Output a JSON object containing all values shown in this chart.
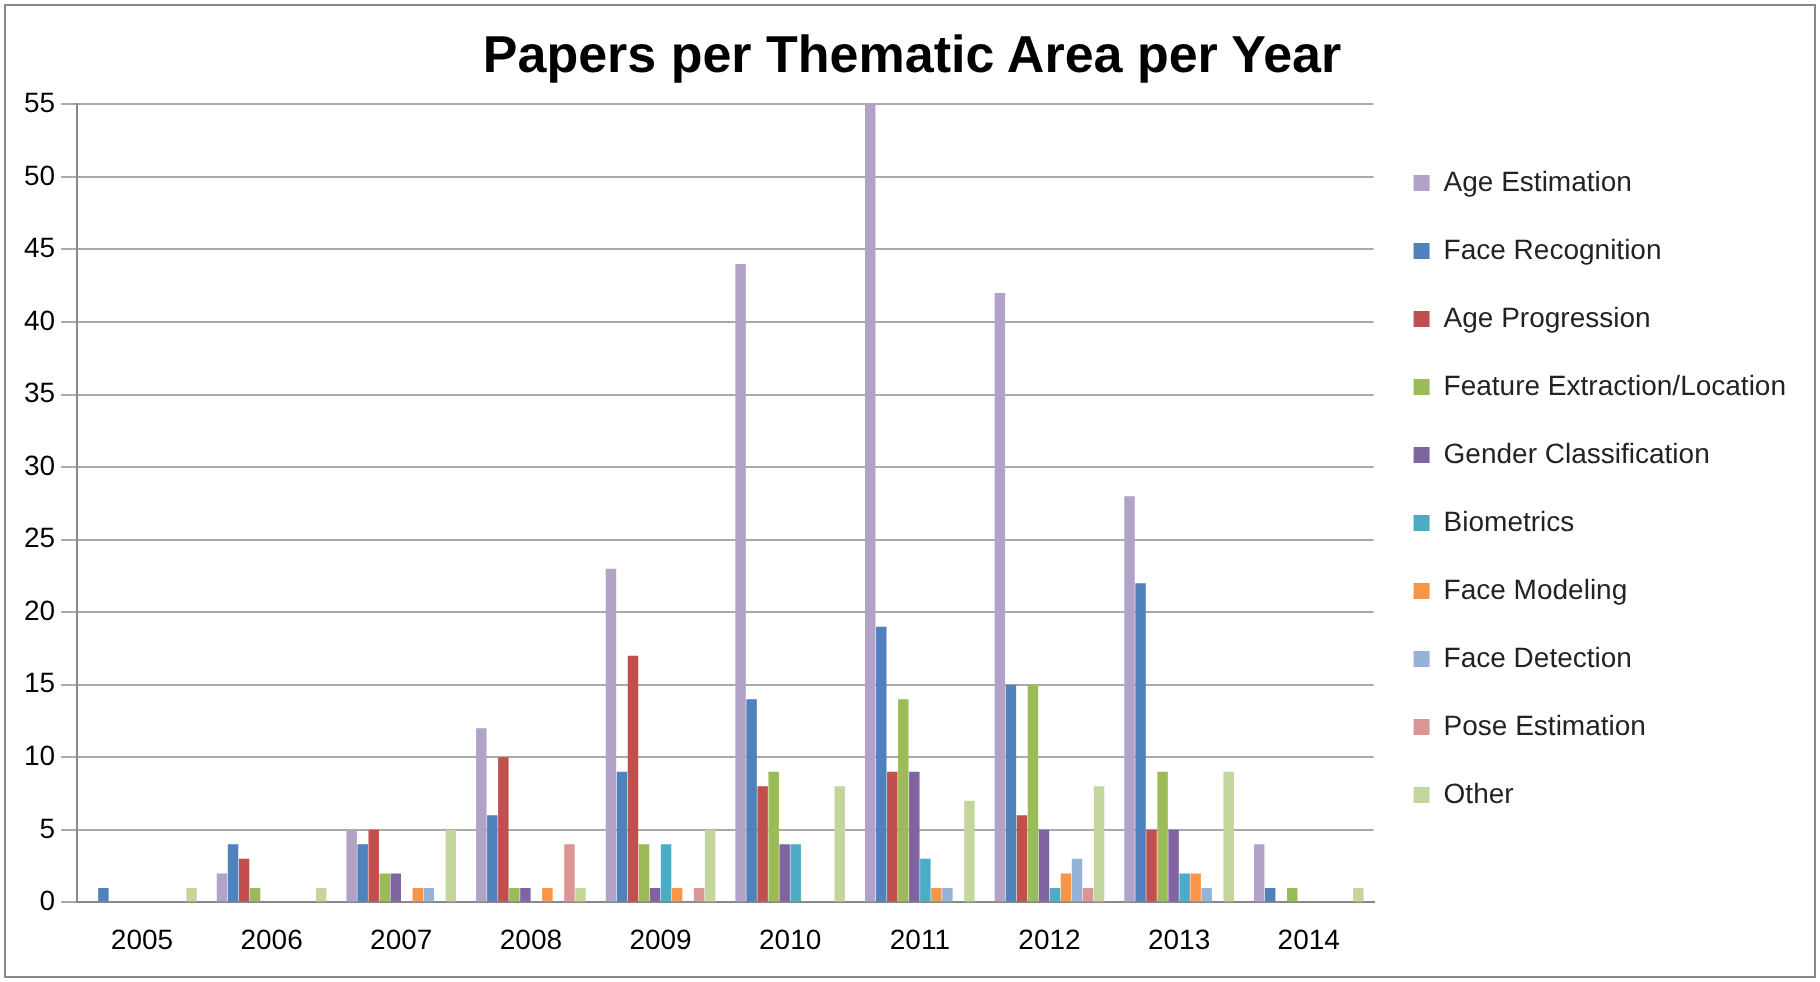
{
  "chart_data": {
    "type": "bar",
    "title": "Papers per Thematic Area per Year",
    "categories": [
      "2005",
      "2006",
      "2007",
      "2008",
      "2009",
      "2010",
      "2011",
      "2012",
      "2013",
      "2014"
    ],
    "series": [
      {
        "name": "Age Estimation",
        "color": "#b3a2c7",
        "values": [
          0,
          2,
          5,
          12,
          23,
          44,
          55,
          42,
          28,
          4
        ]
      },
      {
        "name": "Face Recognition",
        "color": "#4f81bd",
        "values": [
          1,
          4,
          4,
          6,
          9,
          14,
          19,
          15,
          22,
          1
        ]
      },
      {
        "name": "Age Progression",
        "color": "#c0504d",
        "values": [
          0,
          3,
          5,
          10,
          17,
          8,
          9,
          6,
          5,
          0
        ]
      },
      {
        "name": "Feature Extraction/Location",
        "color": "#9bbb59",
        "values": [
          0,
          1,
          2,
          1,
          4,
          9,
          14,
          15,
          9,
          1
        ]
      },
      {
        "name": "Gender Classification",
        "color": "#8064a2",
        "values": [
          0,
          0,
          2,
          1,
          1,
          4,
          9,
          5,
          5,
          0
        ]
      },
      {
        "name": "Biometrics",
        "color": "#4bacc6",
        "values": [
          0,
          0,
          0,
          0,
          4,
          4,
          3,
          1,
          2,
          0
        ]
      },
      {
        "name": "Face Modeling",
        "color": "#f79646",
        "values": [
          0,
          0,
          1,
          1,
          1,
          0,
          1,
          2,
          2,
          0
        ]
      },
      {
        "name": "Face Detection",
        "color": "#95b3d7",
        "values": [
          0,
          0,
          1,
          0,
          0,
          0,
          1,
          3,
          1,
          0
        ]
      },
      {
        "name": "Pose Estimation",
        "color": "#d99694",
        "values": [
          0,
          0,
          0,
          4,
          1,
          0,
          0,
          1,
          0,
          0
        ]
      },
      {
        "name": "Other",
        "color": "#c3d69b",
        "values": [
          1,
          1,
          5,
          1,
          5,
          8,
          7,
          8,
          9,
          1
        ]
      }
    ],
    "ylim": [
      0,
      55
    ],
    "yticks": [
      0,
      5,
      10,
      15,
      20,
      25,
      30,
      35,
      40,
      45,
      50,
      55
    ],
    "grid": "y",
    "legend": "right"
  }
}
